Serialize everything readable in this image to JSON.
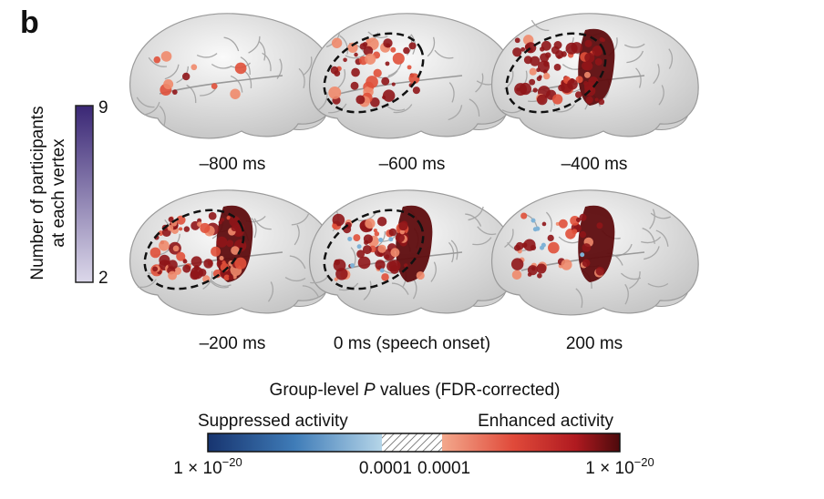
{
  "panel_label": "b",
  "participants_colorbar": {
    "title_lines": [
      "Number of participants",
      "at each vertex"
    ],
    "max_label": "9",
    "min_label": "2"
  },
  "panels": [
    {
      "time_label": "–800 ms"
    },
    {
      "time_label": "–600 ms"
    },
    {
      "time_label": "–400 ms"
    },
    {
      "time_label": "–200 ms"
    },
    {
      "time_label": "0 ms (speech onset)"
    },
    {
      "time_label": "200 ms"
    }
  ],
  "p_value_legend": {
    "title": {
      "before": "Group-level ",
      "italic": "P",
      "after": " values (FDR-corrected)"
    },
    "suppressed_label": "Suppressed activity",
    "enhanced_label": "Enhanced activity",
    "tick_labels": [
      {
        "base": "1 × 10",
        "exponent": "−20"
      },
      {
        "text": "0.0001"
      },
      {
        "text": "0.0001"
      },
      {
        "base": "1 × 10",
        "exponent": "−20"
      }
    ]
  }
}
